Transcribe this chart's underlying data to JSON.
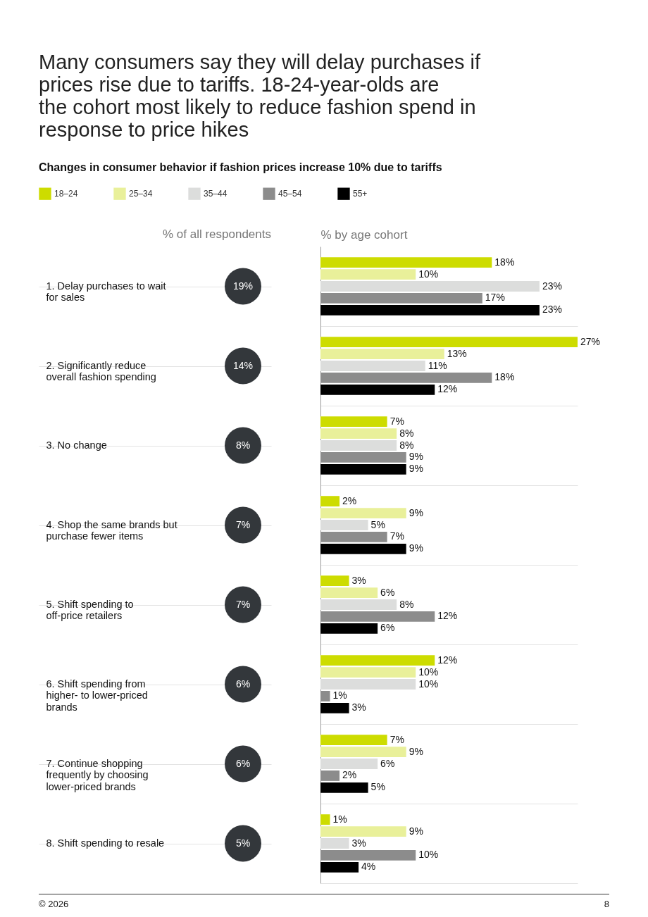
{
  "chart_data": [
    {
      "type": "other",
      "title": "Many consumers say they will delay purchases if prices rise due to tariffs. 18-24-year-olds are the cohort most likely to reduce fashion spend in response to price hikes",
      "subtitle": "Changes in consumer behavior if fashion prices increase 10% due to tariffs",
      "xlabel": "% of all respondents",
      "value_labels": [
        "19%",
        "14%",
        "8%",
        "7%",
        "7%",
        "6%",
        "6%",
        "5%"
      ],
      "color": "#33373b",
      "annotations": [
        "© 2026",
        "8"
      ]
    },
    {
      "type": "bar",
      "orientation": "horizontal",
      "xlabel": "% by age cohort",
      "legend": "top left",
      "tick_labels": "y",
      "grid": "y",
      "categories": [
        "1. Delay purchases to wait for sales",
        "2. Significantly reduce overall fashion spending",
        "3. No change",
        "4. Shop the same brands but purchase fewer items",
        "5. Shift spending to off-price retailers",
        "6. Shift spending from higher- to lower-priced brands",
        "7. Continue shopping frequently by choosing lower-priced brands",
        "8. Shift spending to resale"
      ],
      "series": [
        {
          "name": "18–24",
          "color": "#cddc00",
          "values": [
            18,
            27,
            7,
            2,
            3,
            12,
            7,
            1
          ],
          "value_labels": [
            "18%",
            "27%",
            "7%",
            "2%",
            "3%",
            "12%",
            "7%",
            "1%"
          ]
        },
        {
          "name": "25–34",
          "color": "#e9f09a",
          "values": [
            10,
            13,
            8,
            9,
            6,
            10,
            9,
            9
          ],
          "value_labels": [
            "10%",
            "13%",
            "8%",
            "9%",
            "6%",
            "10%",
            "9%",
            "9%"
          ]
        },
        {
          "name": "35–44",
          "color": "#dcdddc",
          "values": [
            23,
            11,
            8,
            5,
            8,
            10,
            6,
            3
          ],
          "value_labels": [
            "23%",
            "11%",
            "8%",
            "5%",
            "8%",
            "10%",
            "6%",
            "3%"
          ]
        },
        {
          "name": "45–54",
          "color": "#8c8c8c",
          "values": [
            17,
            18,
            9,
            7,
            12,
            1,
            2,
            10
          ],
          "value_labels": [
            "17%",
            "18%",
            "9%",
            "7%",
            "12%",
            "1%",
            "2%",
            "10%"
          ]
        },
        {
          "name": "55+",
          "color": "#000000",
          "values": [
            23,
            12,
            9,
            9,
            6,
            3,
            5,
            4
          ],
          "value_labels": [
            "23%",
            "12%",
            "9%",
            "9%",
            "6%",
            "3%",
            "5%",
            "4%"
          ]
        }
      ]
    }
  ]
}
